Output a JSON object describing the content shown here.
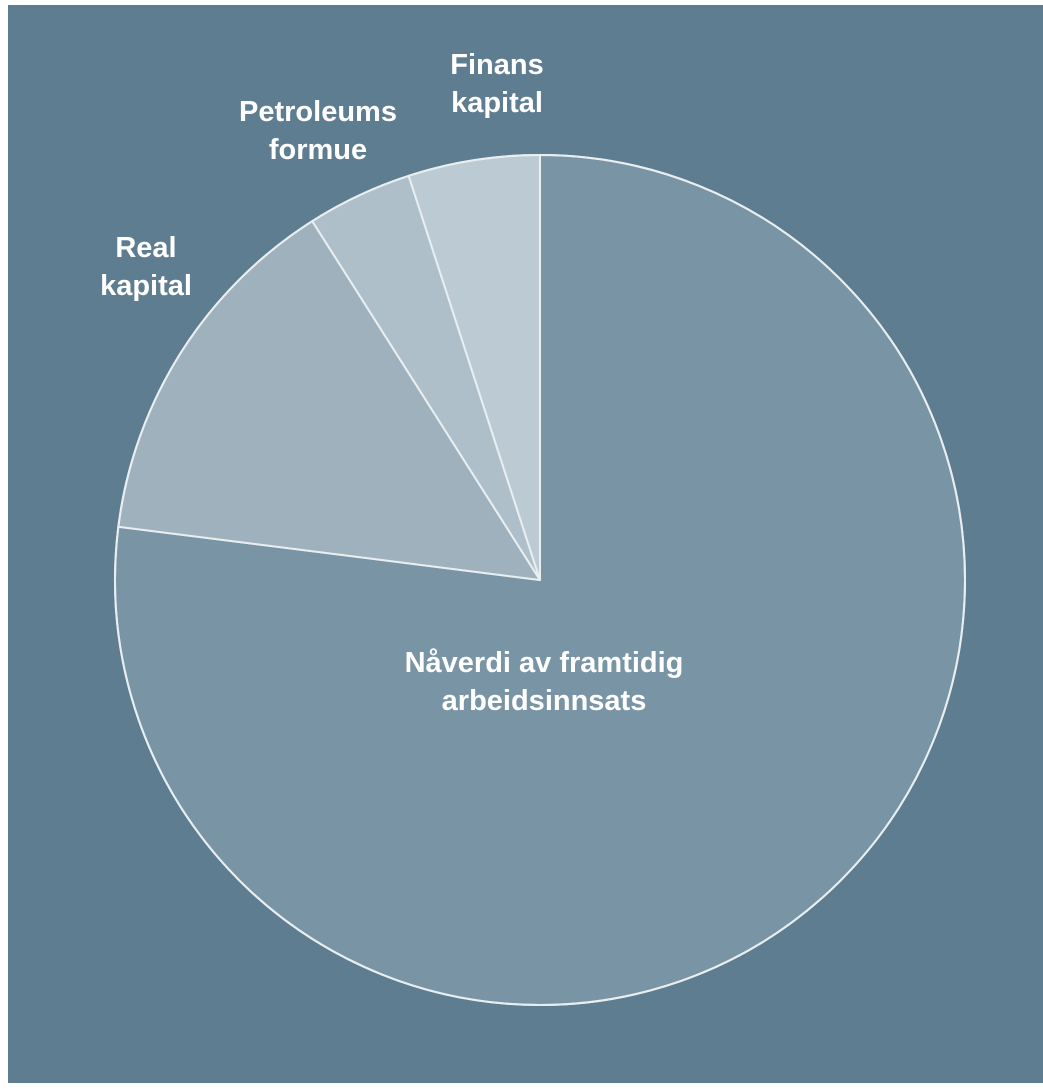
{
  "chart_data": {
    "type": "pie",
    "start_angle_deg": 0,
    "direction": "clockwise",
    "colors": {
      "background": "#5e7d91",
      "border": "#e9eef1"
    },
    "slices": [
      {
        "label_lines": [
          "Nåverdi av framtidig",
          "arbeidsinnsats"
        ],
        "value": 77,
        "color": "#7994a5"
      },
      {
        "label_lines": [
          "Real",
          "kapital"
        ],
        "value": 14,
        "color": "#9eb1bd"
      },
      {
        "label_lines": [
          "Petroleums",
          "formue"
        ],
        "value": 4,
        "color": "#afbfca"
      },
      {
        "label_lines": [
          "Finans",
          "kapital"
        ],
        "value": 5,
        "color": "#bccad3"
      }
    ]
  }
}
